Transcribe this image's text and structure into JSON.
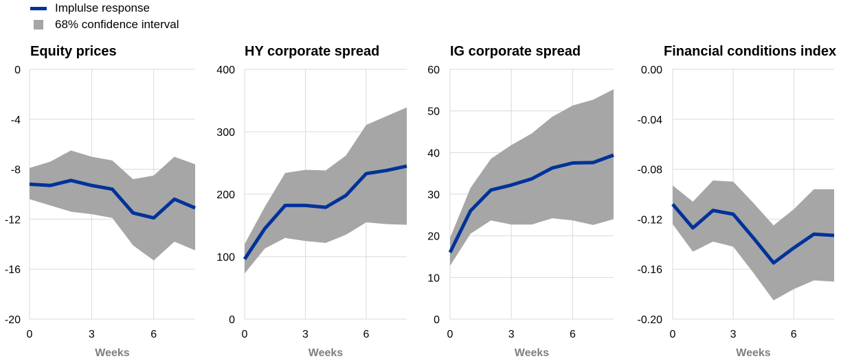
{
  "legend": {
    "items": [
      {
        "label": "Implulse response",
        "color": "#003299",
        "kind": "line"
      },
      {
        "label": "68% confidence interval",
        "color": "#a6a6a6",
        "kind": "area"
      }
    ]
  },
  "colors": {
    "line": "#003299",
    "band": "#a6a6a6",
    "grid": "#d9d9d9",
    "axis_text": "#000000",
    "xlabel": "#7f7f7f"
  },
  "chart_data": [
    {
      "type": "line",
      "title": "Equity prices",
      "xlabel": "Weeks",
      "x": [
        0,
        1,
        2,
        3,
        4,
        5,
        6,
        7,
        8
      ],
      "xticks": [
        0,
        3,
        6
      ],
      "ylim": [
        -20,
        0
      ],
      "yticks": [
        0,
        -4,
        -8,
        -12,
        -16,
        -20
      ],
      "ytick_labels": [
        "0",
        "-4",
        "-8",
        "-12",
        "-16",
        "-20"
      ],
      "series": [
        {
          "name": "Implulse response",
          "values": [
            -9.2,
            -9.3,
            -8.9,
            -9.3,
            -9.6,
            -11.5,
            -11.9,
            -10.4,
            -11.1
          ]
        },
        {
          "name": "68% confidence interval",
          "upper": [
            -7.9,
            -7.4,
            -6.5,
            -7.0,
            -7.3,
            -8.8,
            -8.5,
            -7.0,
            -7.6
          ],
          "lower": [
            -10.4,
            -10.9,
            -11.4,
            -11.6,
            -11.9,
            -14.1,
            -15.3,
            -13.8,
            -14.5
          ]
        }
      ]
    },
    {
      "type": "line",
      "title": "HY corporate spread",
      "xlabel": "Weeks",
      "x": [
        0,
        1,
        2,
        3,
        4,
        5,
        6,
        7,
        8
      ],
      "xticks": [
        0,
        3,
        6
      ],
      "ylim": [
        0,
        400
      ],
      "yticks": [
        400,
        300,
        200,
        100,
        0
      ],
      "ytick_labels": [
        "400",
        "300",
        "200",
        "100",
        "0"
      ],
      "series": [
        {
          "name": "Implulse response",
          "values": [
            96,
            145,
            182,
            182,
            179,
            198,
            233,
            238,
            245
          ]
        },
        {
          "name": "68% confidence interval",
          "upper": [
            120,
            180,
            234,
            239,
            238,
            262,
            311,
            325,
            339
          ],
          "lower": [
            73,
            113,
            130,
            125,
            122,
            135,
            155,
            152,
            151
          ]
        }
      ]
    },
    {
      "type": "line",
      "title": "IG corporate spread",
      "xlabel": "Weeks",
      "x": [
        0,
        1,
        2,
        3,
        4,
        5,
        6,
        7,
        8
      ],
      "xticks": [
        0,
        3,
        6
      ],
      "ylim": [
        0,
        60
      ],
      "yticks": [
        60,
        50,
        40,
        30,
        20,
        10,
        0
      ],
      "ytick_labels": [
        "60",
        "50",
        "40",
        "30",
        "20",
        "10",
        "0"
      ],
      "series": [
        {
          "name": "Implulse response",
          "values": [
            16,
            26,
            31,
            32.2,
            33.7,
            36.3,
            37.5,
            37.6,
            39.4
          ]
        },
        {
          "name": "68% confidence interval",
          "upper": [
            19.5,
            31.5,
            38.5,
            41.8,
            44.6,
            48.6,
            51.3,
            52.7,
            55.2
          ],
          "lower": [
            12.8,
            20.5,
            23.7,
            22.7,
            22.7,
            24.2,
            23.7,
            22.6,
            24.0
          ]
        }
      ]
    },
    {
      "type": "line",
      "title": "Financial conditions index",
      "xlabel": "Weeks",
      "x": [
        0,
        1,
        2,
        3,
        4,
        5,
        6,
        7,
        8
      ],
      "xticks": [
        0,
        3,
        6
      ],
      "ylim": [
        -0.2,
        0
      ],
      "yticks": [
        0,
        -0.04,
        -0.08,
        -0.12,
        -0.16,
        -0.2
      ],
      "ytick_labels": [
        "0.00",
        "-0.04",
        "-0.08",
        "-0.12",
        "-0.16",
        "-0.20"
      ],
      "series": [
        {
          "name": "Implulse response",
          "values": [
            -0.108,
            -0.127,
            -0.113,
            -0.116,
            -0.135,
            -0.155,
            -0.143,
            -0.132,
            -0.133
          ]
        },
        {
          "name": "68% confidence interval",
          "upper": [
            -0.093,
            -0.106,
            -0.089,
            -0.09,
            -0.107,
            -0.125,
            -0.112,
            -0.096,
            -0.096
          ],
          "lower": [
            -0.124,
            -0.146,
            -0.138,
            -0.142,
            -0.163,
            -0.185,
            -0.176,
            -0.169,
            -0.17
          ]
        }
      ]
    }
  ]
}
